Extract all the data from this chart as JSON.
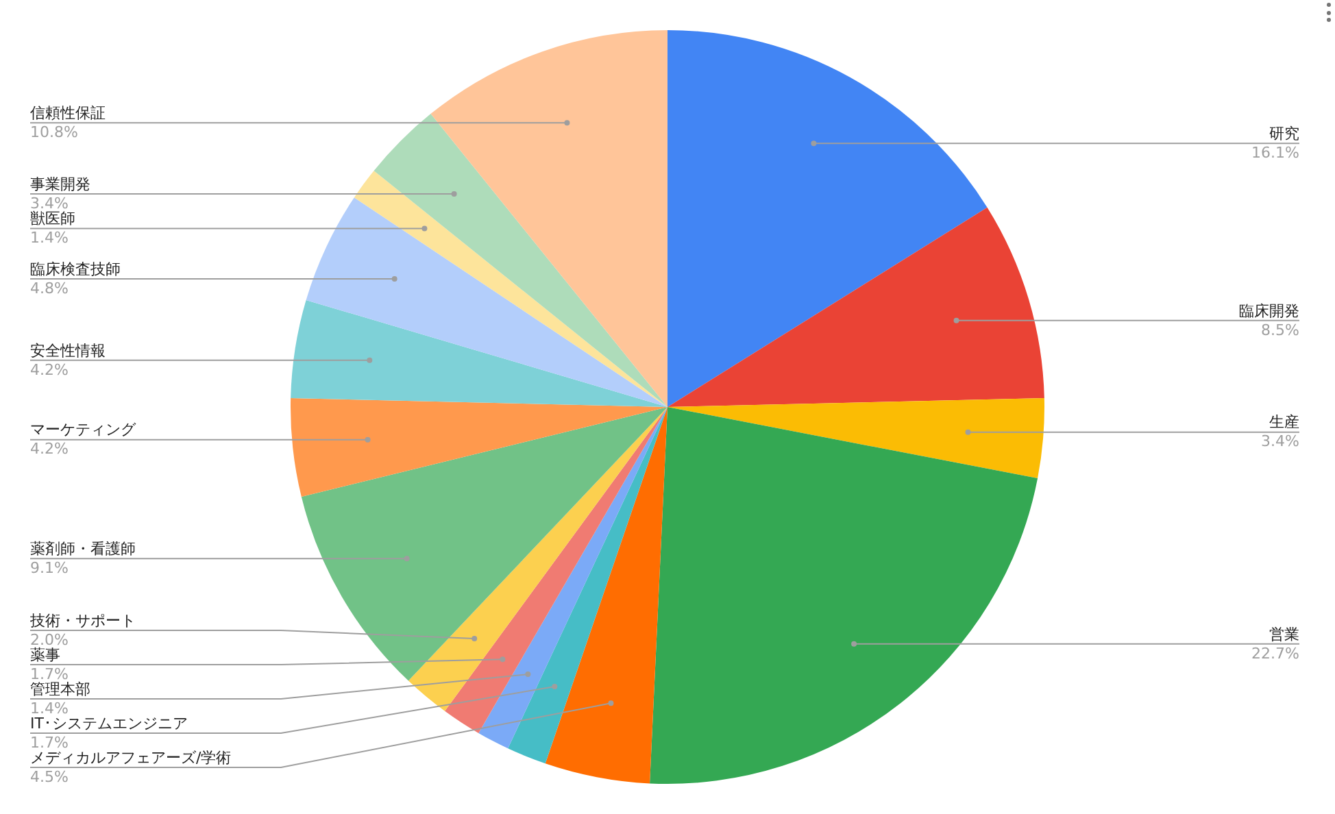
{
  "chart_data": {
    "type": "pie",
    "categories": [
      "研究",
      "臨床開発",
      "生産",
      "営業",
      "メディカルアフェアーズ/学術",
      "IT･システムエンジニア",
      "管理本部",
      "薬事",
      "技術・サポート",
      "薬剤師・看護師",
      "マーケティング",
      "安全性情報",
      "臨床検査技師",
      "獣医師",
      "事業開発",
      "信頼性保証"
    ],
    "values": [
      16.1,
      8.5,
      3.4,
      22.7,
      4.5,
      1.7,
      1.4,
      1.7,
      2.0,
      9.1,
      4.2,
      4.2,
      4.8,
      1.4,
      3.4,
      10.8
    ],
    "value_labels": [
      "16.1%",
      "8.5%",
      "3.4%",
      "22.7%",
      "4.5%",
      "1.7%",
      "1.4%",
      "1.7%",
      "2.0%",
      "9.1%",
      "4.2%",
      "4.2%",
      "4.8%",
      "1.4%",
      "3.4%",
      "10.8%"
    ],
    "colors": [
      "#4285f4",
      "#ea4335",
      "#fbbc04",
      "#34a853",
      "#ff6d01",
      "#46bdc6",
      "#7baaf7",
      "#f07b72",
      "#fcd04f",
      "#71c287",
      "#ff994d",
      "#7ed1d7",
      "#b3cefb",
      "#fde49b",
      "#aedcba",
      "#ffc599"
    ]
  }
}
